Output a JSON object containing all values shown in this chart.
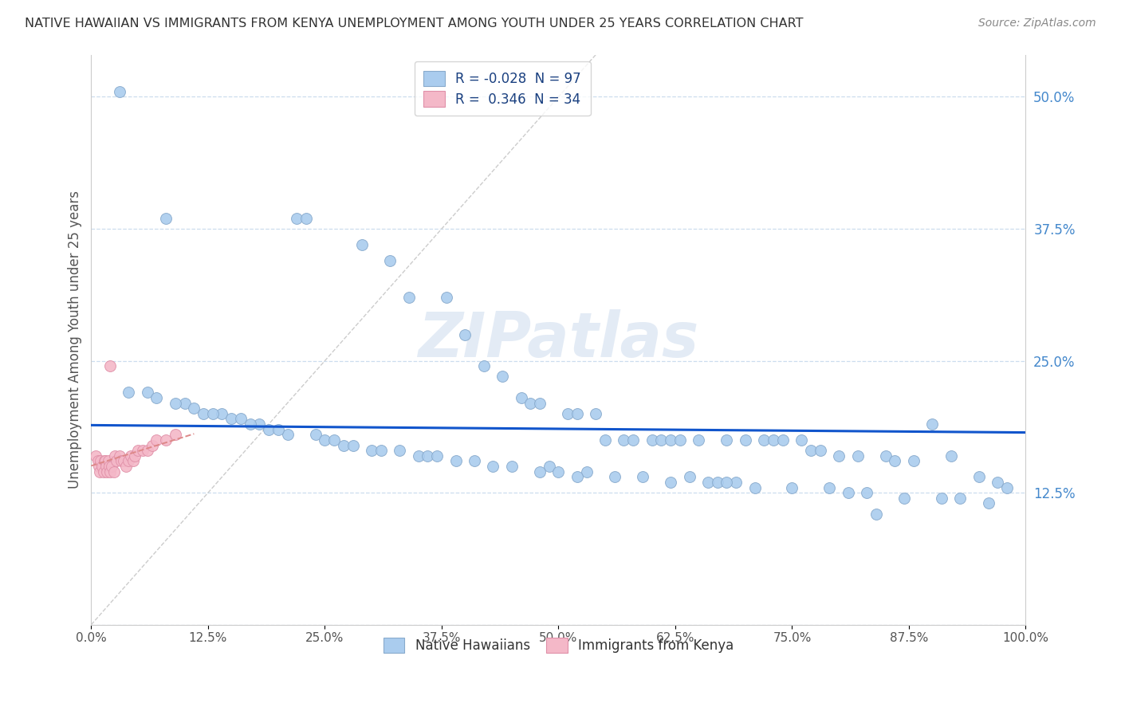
{
  "title": "NATIVE HAWAIIAN VS IMMIGRANTS FROM KENYA UNEMPLOYMENT AMONG YOUTH UNDER 25 YEARS CORRELATION CHART",
  "source": "Source: ZipAtlas.com",
  "ylabel": "Unemployment Among Youth under 25 years",
  "xlim": [
    0.0,
    1.0
  ],
  "ylim": [
    0.0,
    0.54
  ],
  "xtick_positions": [
    0.0,
    0.125,
    0.25,
    0.375,
    0.5,
    0.625,
    0.75,
    0.875,
    1.0
  ],
  "xtick_labels": [
    "0.0%",
    "12.5%",
    "25.0%",
    "37.5%",
    "50.0%",
    "62.5%",
    "75.0%",
    "87.5%",
    "100.0%"
  ],
  "ytick_positions": [
    0.0,
    0.125,
    0.25,
    0.375,
    0.5
  ],
  "ytick_labels": [
    "",
    "12.5%",
    "25.0%",
    "37.5%",
    "50.0%"
  ],
  "r_blue": -0.028,
  "n_blue": 97,
  "r_pink": 0.346,
  "n_pink": 34,
  "blue_color": "#aaccee",
  "blue_edge": "#88aacc",
  "pink_color": "#f4b8c8",
  "pink_edge": "#e090a8",
  "blue_line_color": "#1155cc",
  "pink_line_color": "#dd8888",
  "diagonal_color": "#cccccc",
  "grid_color": "#ccddee",
  "bg_color": "#ffffff",
  "label_color": "#4488cc",
  "watermark": "ZIPatlas",
  "blue_x": [
    0.03,
    0.08,
    0.22,
    0.23,
    0.29,
    0.32,
    0.34,
    0.38,
    0.4,
    0.42,
    0.44,
    0.46,
    0.47,
    0.48,
    0.51,
    0.52,
    0.54,
    0.55,
    0.57,
    0.58,
    0.6,
    0.61,
    0.62,
    0.63,
    0.65,
    0.68,
    0.7,
    0.72,
    0.73,
    0.74,
    0.76,
    0.77,
    0.78,
    0.8,
    0.82,
    0.85,
    0.86,
    0.88,
    0.9,
    0.92,
    0.95,
    0.97,
    0.1,
    0.12,
    0.14,
    0.15,
    0.16,
    0.18,
    0.19,
    0.21,
    0.24,
    0.25,
    0.27,
    0.28,
    0.3,
    0.33,
    0.35,
    0.36,
    0.39,
    0.41,
    0.43,
    0.45,
    0.49,
    0.5,
    0.53,
    0.56,
    0.59,
    0.64,
    0.66,
    0.67,
    0.69,
    0.71,
    0.75,
    0.79,
    0.81,
    0.83,
    0.87,
    0.91,
    0.93,
    0.96,
    0.04,
    0.06,
    0.07,
    0.09,
    0.11,
    0.13,
    0.17,
    0.2,
    0.26,
    0.31,
    0.37,
    0.48,
    0.52,
    0.62,
    0.68,
    0.84,
    0.98
  ],
  "blue_y": [
    0.505,
    0.385,
    0.385,
    0.385,
    0.36,
    0.345,
    0.31,
    0.31,
    0.275,
    0.245,
    0.235,
    0.215,
    0.21,
    0.21,
    0.2,
    0.2,
    0.2,
    0.175,
    0.175,
    0.175,
    0.175,
    0.175,
    0.175,
    0.175,
    0.175,
    0.175,
    0.175,
    0.175,
    0.175,
    0.175,
    0.175,
    0.165,
    0.165,
    0.16,
    0.16,
    0.16,
    0.155,
    0.155,
    0.19,
    0.16,
    0.14,
    0.135,
    0.21,
    0.2,
    0.2,
    0.195,
    0.195,
    0.19,
    0.185,
    0.18,
    0.18,
    0.175,
    0.17,
    0.17,
    0.165,
    0.165,
    0.16,
    0.16,
    0.155,
    0.155,
    0.15,
    0.15,
    0.15,
    0.145,
    0.145,
    0.14,
    0.14,
    0.14,
    0.135,
    0.135,
    0.135,
    0.13,
    0.13,
    0.13,
    0.125,
    0.125,
    0.12,
    0.12,
    0.12,
    0.115,
    0.22,
    0.22,
    0.215,
    0.21,
    0.205,
    0.2,
    0.19,
    0.185,
    0.175,
    0.165,
    0.16,
    0.145,
    0.14,
    0.135,
    0.135,
    0.105,
    0.13
  ],
  "pink_x": [
    0.005,
    0.007,
    0.008,
    0.009,
    0.01,
    0.012,
    0.013,
    0.014,
    0.015,
    0.016,
    0.017,
    0.018,
    0.019,
    0.02,
    0.022,
    0.024,
    0.025,
    0.027,
    0.03,
    0.032,
    0.035,
    0.037,
    0.04,
    0.042,
    0.045,
    0.047,
    0.05,
    0.055,
    0.06,
    0.065,
    0.07,
    0.08,
    0.09,
    0.02
  ],
  "pink_y": [
    0.16,
    0.155,
    0.15,
    0.145,
    0.155,
    0.15,
    0.145,
    0.155,
    0.155,
    0.15,
    0.145,
    0.155,
    0.15,
    0.145,
    0.15,
    0.145,
    0.16,
    0.155,
    0.16,
    0.155,
    0.155,
    0.15,
    0.155,
    0.16,
    0.155,
    0.16,
    0.165,
    0.165,
    0.165,
    0.17,
    0.175,
    0.175,
    0.18,
    0.245
  ]
}
